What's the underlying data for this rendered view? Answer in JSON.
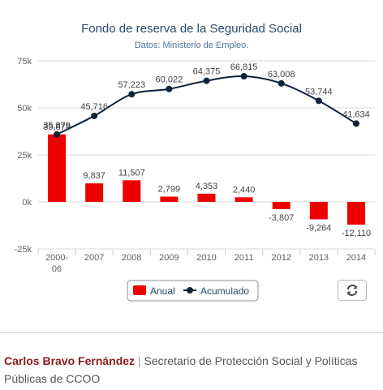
{
  "chart_data": {
    "type": "bar",
    "title": "Fondo de reserva de la Seguridad Social",
    "subtitle": "Datos: Ministerio de Empleo.",
    "categories": [
      "2000-06",
      "2007",
      "2008",
      "2009",
      "2010",
      "2011",
      "2012",
      "2013",
      "2014"
    ],
    "category_lines": [
      [
        "2000-",
        "06"
      ],
      [
        "2007"
      ],
      [
        "2008"
      ],
      [
        "2009"
      ],
      [
        "2010"
      ],
      [
        "2011"
      ],
      [
        "2012"
      ],
      [
        "2013"
      ],
      [
        "2014"
      ]
    ],
    "series": [
      {
        "name": "Anual",
        "type": "bar",
        "color": "#ee0000",
        "values": [
          35879,
          9837,
          11507,
          2799,
          4353,
          2440,
          -3807,
          -9264,
          -12110
        ],
        "labels": [
          "35,879",
          "9,837",
          "11,507",
          "2,799",
          "4,353",
          "2,440",
          "-3,807",
          "-9,264",
          "-12,110"
        ]
      },
      {
        "name": "Acumulado",
        "type": "line",
        "color": "#0d233a",
        "values": [
          35879,
          45716,
          57223,
          60022,
          64375,
          66815,
          63008,
          53744,
          41634
        ],
        "labels": [
          "35,879",
          "45,716",
          "57,223",
          "60,022",
          "64,375",
          "66,815",
          "63,008",
          "53,744",
          "41,634"
        ]
      }
    ],
    "ylim": [
      -25000,
      75000
    ],
    "yticks": [
      -25000,
      0,
      25000,
      50000,
      75000
    ],
    "ytick_labels": [
      "-25k",
      "0k",
      "25k",
      "50k",
      "75k"
    ],
    "grid": true,
    "legend_position": "bottom-center"
  },
  "toolbar": {
    "refresh_icon": "refresh-icon"
  },
  "credit": {
    "author": "Carlos Bravo Fernández",
    "separator": "|",
    "role": "Secretario de Protección Social y Políticas Públicas de CCOO"
  }
}
